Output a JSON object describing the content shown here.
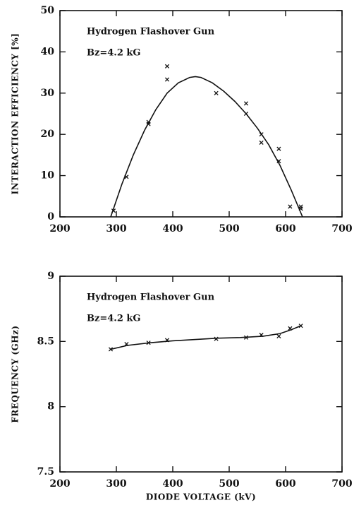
{
  "chart_data": [
    {
      "type": "scatter",
      "annotations": [
        "Hydrogen Flashover Gun",
        "Bz=4.2 kG"
      ],
      "ylabel": "INTERACTION EFFICIENCY [%]",
      "xlim": [
        200,
        700
      ],
      "xticks": [
        200,
        300,
        400,
        500,
        600,
        700
      ],
      "ylim": [
        0,
        50
      ],
      "yticks": [
        0,
        10,
        20,
        30,
        40,
        50
      ],
      "color": "#111111",
      "series": [
        {
          "x": [
            295,
            318,
            357,
            357,
            390,
            390,
            477,
            530,
            530,
            557,
            557,
            588,
            588,
            608,
            627,
            627
          ],
          "values": [
            1.5,
            9.7,
            22.5,
            23,
            36.5,
            33.3,
            30,
            27.5,
            25,
            20,
            18,
            16.5,
            13.5,
            2.5,
            2.5,
            2
          ]
        }
      ],
      "fit": {
        "x": [
          290,
          310,
          330,
          350,
          370,
          390,
          410,
          430,
          440,
          450,
          470,
          490,
          510,
          530,
          550,
          570,
          590,
          610,
          630
        ],
        "values": [
          0,
          8,
          15,
          21,
          26,
          30,
          32.5,
          33.8,
          34,
          33.8,
          32.5,
          30.5,
          28,
          25,
          21.5,
          17.5,
          12.5,
          6.5,
          0
        ]
      }
    },
    {
      "type": "scatter",
      "annotations": [
        "Hydrogen Flashover Gun",
        "Bz=4.2 kG"
      ],
      "ylabel": "FREQUENCY (GHz)",
      "xlabel": "DIODE VOLTAGE (kV)",
      "xlim": [
        200,
        700
      ],
      "xticks": [
        200,
        300,
        400,
        500,
        600,
        700
      ],
      "ylim": [
        7.5,
        9
      ],
      "yticks": [
        7.5,
        8,
        8.5,
        9
      ],
      "color": "#111111",
      "series": [
        {
          "x": [
            290,
            318,
            357,
            390,
            477,
            530,
            557,
            588,
            608,
            627
          ],
          "values": [
            8.44,
            8.48,
            8.49,
            8.51,
            8.52,
            8.53,
            8.55,
            8.54,
            8.6,
            8.62
          ]
        }
      ],
      "fit": {
        "x": [
          290,
          320,
          360,
          400,
          440,
          480,
          520,
          560,
          590,
          610,
          627
        ],
        "values": [
          8.44,
          8.47,
          8.49,
          8.505,
          8.515,
          8.525,
          8.53,
          8.54,
          8.56,
          8.59,
          8.62
        ]
      }
    }
  ]
}
